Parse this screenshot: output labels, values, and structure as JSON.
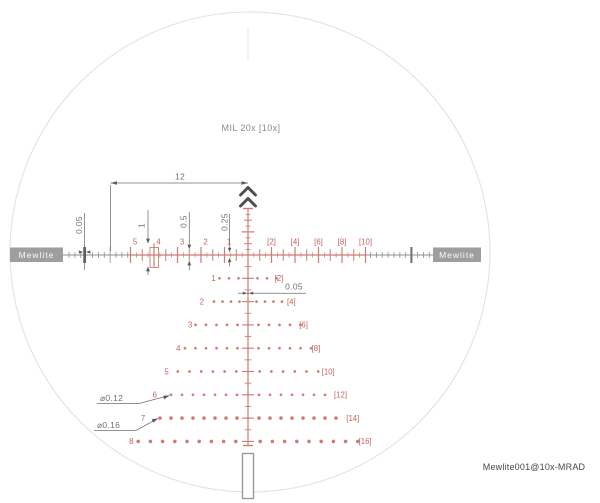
{
  "title": "MIL 20x [10x]",
  "footer": "Mewlite001@10x-MRAD",
  "brand": {
    "left": "Mewlite",
    "right": "Mewlite"
  },
  "dimensions": {
    "top_span": "12",
    "left_tick_width": "0.05",
    "tick_full": "1",
    "tick_half": "0.5",
    "tick_quarter": "0.25",
    "center_line_width": "0.05",
    "dot_small_diameter": "⌀0.12",
    "dot_large_diameter": "⌀0.16"
  },
  "axis": {
    "left_numbers": [
      "5",
      "4",
      "3",
      "2",
      "1"
    ],
    "right_numbers": [
      "[2]",
      "[4]",
      "[6]",
      "[8]",
      "[10]"
    ]
  },
  "tree_rows": [
    {
      "num": "1",
      "label": "[2]",
      "dots": 3,
      "spacing": 9.5
    },
    {
      "num": "2",
      "label": "[4]",
      "dots": 4,
      "spacing": 8.5
    },
    {
      "num": "3",
      "label": "[6]",
      "dots": 5,
      "spacing": 10.5
    },
    {
      "num": "4",
      "label": "[8]",
      "dots": 6,
      "spacing": 10.5
    },
    {
      "num": "5",
      "label": "[10]",
      "dots": 6,
      "spacing": 11.7
    },
    {
      "num": "6",
      "label": "[12]",
      "dots": 7,
      "spacing": 11.0
    },
    {
      "num": "7",
      "label": "[14]",
      "dots": 8,
      "spacing": 11.0
    },
    {
      "num": "8",
      "label": "[16]",
      "dots": 9,
      "spacing": 12.2
    }
  ],
  "colors": {
    "reticle": "#cd7b73",
    "reticle_text": "#c4645b",
    "gray_line": "#8f8f8f",
    "dark_tick": "#3c3c3c",
    "circle": "#e2e2e2",
    "brand_box": "#9e9e9e",
    "dim": "#6f6f6f"
  }
}
